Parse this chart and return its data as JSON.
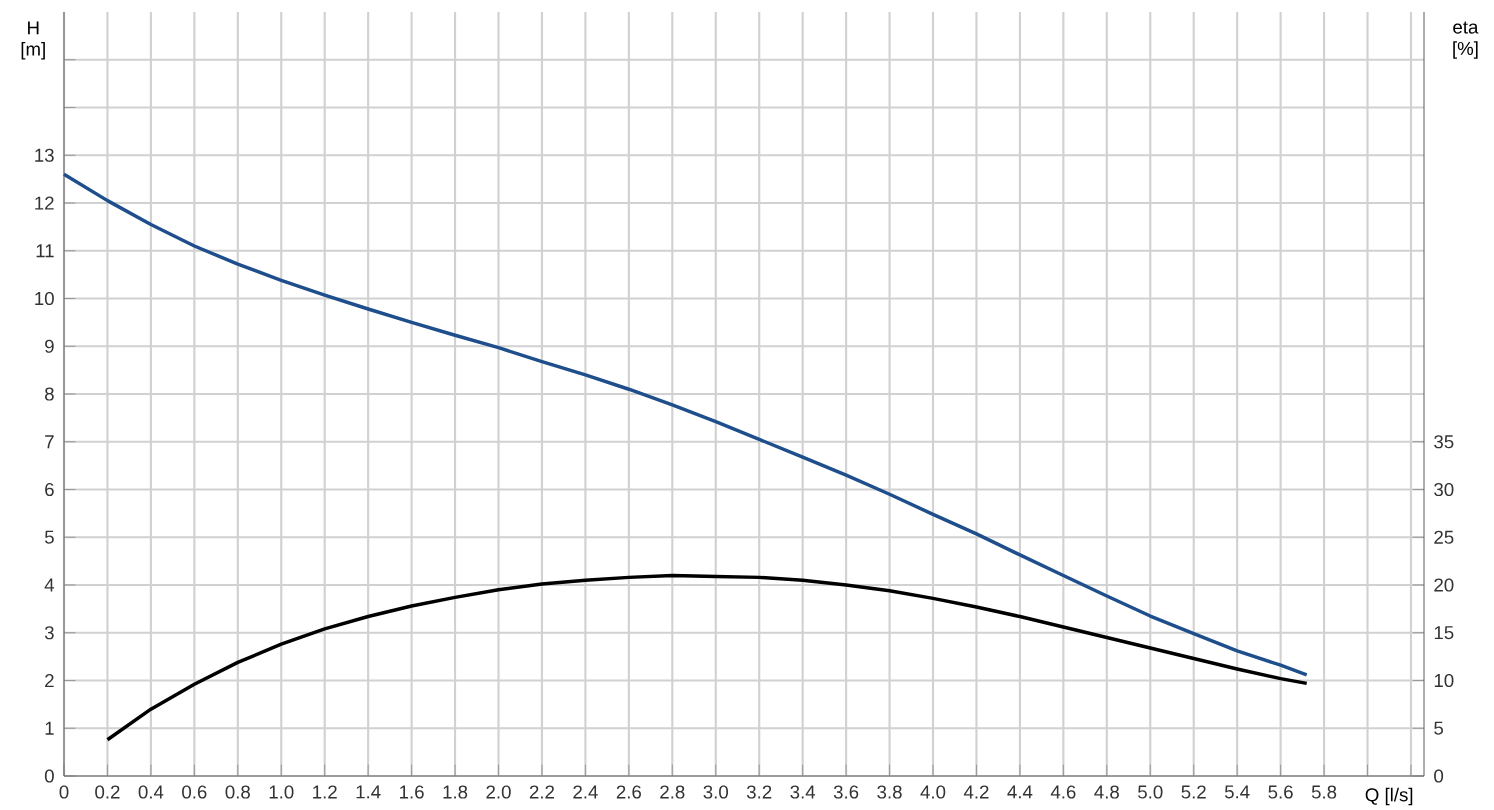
{
  "chart_data": {
    "type": "line",
    "xlabel": "Q [l/s]",
    "ylabel": "H [m]",
    "y2label": "eta [%]",
    "xlim": [
      0,
      6.26
    ],
    "xticks": [
      0,
      {
        "value": 0.2,
        "label": "0.2"
      },
      {
        "value": 0.4,
        "label": "0.4"
      },
      {
        "value": 0.6,
        "label": "0.6"
      },
      {
        "value": 0.8,
        "label": "0.8"
      },
      {
        "value": 1.0,
        "label": "1.0"
      },
      {
        "value": 1.2,
        "label": "1.2"
      },
      {
        "value": 1.4,
        "label": "1.4"
      },
      {
        "value": 1.6,
        "label": "1.6"
      },
      {
        "value": 1.8,
        "label": "1.8"
      },
      {
        "value": 2.0,
        "label": "2.0"
      },
      {
        "value": 2.2,
        "label": "2.2"
      },
      {
        "value": 2.4,
        "label": "2.4"
      },
      {
        "value": 2.6,
        "label": "2.6"
      },
      {
        "value": 2.8,
        "label": "2.8"
      },
      {
        "value": 3.0,
        "label": "3.0"
      },
      {
        "value": 3.2,
        "label": "3.2"
      },
      {
        "value": 3.4,
        "label": "3.4"
      },
      {
        "value": 3.6,
        "label": "3.6"
      },
      {
        "value": 3.8,
        "label": "3.8"
      },
      {
        "value": 4.0,
        "label": "4.0"
      },
      {
        "value": 4.2,
        "label": "4.2"
      },
      {
        "value": 4.4,
        "label": "4.4"
      },
      {
        "value": 4.6,
        "label": "4.6"
      },
      {
        "value": 4.8,
        "label": "4.8"
      },
      {
        "value": 5.0,
        "label": "5.0"
      },
      {
        "value": 5.2,
        "label": "5.2"
      },
      {
        "value": 5.4,
        "label": "5.4"
      },
      {
        "value": 5.6,
        "label": "5.6"
      },
      {
        "value": 5.8,
        "label": "5.8"
      },
      {
        "value": 6.0,
        "label": null
      },
      {
        "value": 6.2,
        "label": null
      }
    ],
    "ylim": [
      0,
      16
    ],
    "yticks": [
      0,
      1,
      2,
      3,
      4,
      5,
      6,
      7,
      8,
      9,
      10,
      11,
      12,
      13,
      {
        "value": 14,
        "label": null
      },
      {
        "value": 15,
        "label": null
      }
    ],
    "y2lim": [
      0,
      80
    ],
    "y2ticks": [
      0,
      5,
      10,
      15,
      20,
      25,
      30,
      35
    ],
    "grid": true,
    "line_style": "solid",
    "marker": "none",
    "series": [
      {
        "color": "#1f4e8c",
        "x": [
          0,
          0.2,
          0.4,
          0.6,
          0.8,
          1.0,
          1.2,
          1.4,
          1.6,
          1.8,
          2.0,
          2.2,
          2.4,
          2.6,
          2.8,
          3.0,
          3.2,
          3.4,
          3.6,
          3.8,
          4.0,
          4.2,
          4.4,
          4.6,
          4.8,
          5.0,
          5.2,
          5.4,
          5.6,
          5.72
        ],
        "values": [
          12.6,
          12.05,
          11.55,
          11.1,
          10.72,
          10.38,
          10.07,
          9.78,
          9.5,
          9.23,
          8.97,
          8.68,
          8.4,
          8.1,
          7.77,
          7.42,
          7.05,
          6.68,
          6.3,
          5.9,
          5.48,
          5.07,
          4.63,
          4.2,
          3.77,
          3.35,
          2.98,
          2.62,
          2.32,
          2.12
        ]
      },
      {
        "color": "#000000",
        "axis": "y2",
        "x": [
          0.2,
          0.4,
          0.6,
          0.8,
          1.0,
          1.2,
          1.4,
          1.6,
          1.8,
          2.0,
          2.2,
          2.4,
          2.6,
          2.8,
          3.0,
          3.2,
          3.4,
          3.6,
          3.8,
          4.0,
          4.2,
          4.4,
          4.6,
          4.8,
          5.0,
          5.2,
          5.4,
          5.6,
          5.72
        ],
        "values": [
          3.8,
          7.0,
          9.6,
          11.9,
          13.8,
          15.4,
          16.7,
          17.8,
          18.7,
          19.5,
          20.1,
          20.5,
          20.8,
          21.0,
          20.9,
          20.8,
          20.5,
          20.0,
          19.4,
          18.6,
          17.7,
          16.7,
          15.6,
          14.5,
          13.4,
          12.3,
          11.2,
          10.2,
          9.7
        ]
      }
    ]
  }
}
